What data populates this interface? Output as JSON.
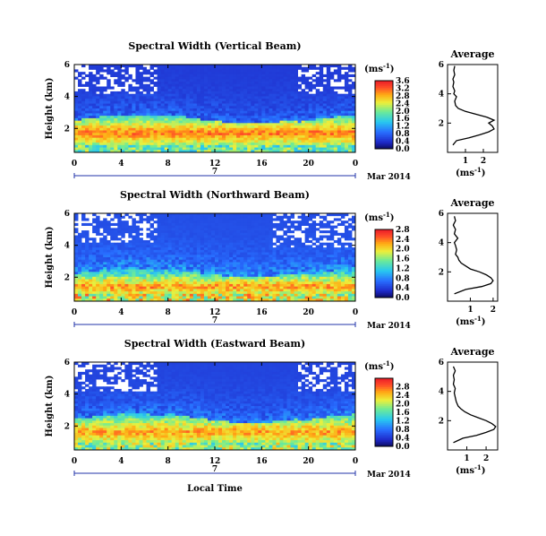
{
  "chart_data": [
    {
      "type": "heatmap",
      "title": "Spectral Width (Vertical Beam)",
      "xlabel": "",
      "ylabel": "Height (km)",
      "xlim": [
        0,
        24
      ],
      "ylim": [
        0.5,
        6
      ],
      "xticks": [
        "0",
        "4",
        "8",
        "12",
        "16",
        "20",
        "0"
      ],
      "yticks": [
        "2",
        "4",
        "6"
      ],
      "date_marker": "7",
      "date_label": "Mar 2014",
      "colorbar": {
        "unit": "(ms",
        "unit_sup": "-1",
        "unit_close": ")",
        "range": [
          0,
          3.6
        ],
        "tick_values": [
          0.0,
          0.4,
          0.8,
          1.2,
          1.6,
          2.0,
          2.4,
          2.8,
          3.2,
          3.6
        ],
        "ticks": [
          "0.0",
          "0.4",
          "0.8",
          "1.2",
          "1.6",
          "2.0",
          "2.4",
          "2.8",
          "3.2",
          "3.6"
        ]
      },
      "field": {
        "gap_height_km": 1.7,
        "peak_height_km": 1.7,
        "layer_top_km": 2.5,
        "layer_thickness_km": 1.2,
        "peak_value": 3.4,
        "upper_value": 0.5
      },
      "profile": {
        "title": "Average",
        "xlabel": "(ms",
        "xlabel_sup": "-1",
        "xlabel_close": ")",
        "xlim": [
          0,
          2.8
        ],
        "ylim": [
          0,
          6
        ],
        "xticks": [
          "1",
          "2"
        ],
        "yticks": [
          "2",
          "4",
          "6"
        ],
        "heights_km": [
          0.5,
          0.8,
          1.0,
          1.2,
          1.4,
          1.6,
          1.8,
          2.0,
          2.2,
          2.4,
          2.6,
          2.8,
          3.0,
          3.2,
          3.5,
          3.8,
          4.0,
          4.2,
          4.5,
          4.8,
          5.0,
          5.3,
          5.6,
          5.9
        ],
        "values": [
          0.3,
          0.5,
          1.2,
          1.8,
          2.3,
          2.6,
          2.5,
          2.3,
          2.6,
          2.2,
          1.6,
          1.0,
          0.6,
          0.45,
          0.4,
          0.5,
          0.35,
          0.4,
          0.3,
          0.35,
          0.3,
          0.4,
          0.35,
          0.4
        ]
      }
    },
    {
      "type": "heatmap",
      "title": "Spectral Width (Northward Beam)",
      "xlabel": "",
      "ylabel": "Height (km)",
      "xlim": [
        0,
        24
      ],
      "ylim": [
        0.5,
        6
      ],
      "xticks": [
        "0",
        "4",
        "8",
        "12",
        "16",
        "20",
        "0"
      ],
      "yticks": [
        "2",
        "4",
        "6"
      ],
      "date_marker": "7",
      "date_label": "Mar 2014",
      "colorbar": {
        "unit": "(ms",
        "unit_sup": "-1",
        "unit_close": ")",
        "range": [
          0,
          2.8
        ],
        "tick_values": [
          0.0,
          0.4,
          0.8,
          1.2,
          1.6,
          2.0,
          2.4,
          2.8
        ],
        "ticks": [
          "0.0",
          "0.4",
          "0.8",
          "1.2",
          "1.6",
          "2.0",
          "2.4",
          "2.8"
        ]
      },
      "field": {
        "gap_height_km": 1.4,
        "peak_height_km": 1.4,
        "layer_top_km": 2.2,
        "layer_thickness_km": 1.0,
        "peak_value": 2.6,
        "upper_value": 0.5
      },
      "profile": {
        "title": "Average",
        "xlabel": "(ms",
        "xlabel_sup": "-1",
        "xlabel_close": ")",
        "xlim": [
          0,
          2.2
        ],
        "ylim": [
          0,
          6
        ],
        "xticks": [
          "1",
          "2"
        ],
        "yticks": [
          "2",
          "4",
          "6"
        ],
        "heights_km": [
          0.5,
          0.8,
          1.0,
          1.2,
          1.4,
          1.6,
          1.8,
          2.0,
          2.2,
          2.4,
          2.6,
          2.8,
          3.0,
          3.2,
          3.5,
          3.8,
          4.0,
          4.3,
          4.6,
          4.9,
          5.2,
          5.5,
          5.8
        ],
        "values": [
          0.3,
          0.8,
          1.5,
          1.9,
          2.0,
          1.9,
          1.7,
          1.4,
          1.0,
          0.8,
          0.6,
          0.5,
          0.45,
          0.35,
          0.4,
          0.35,
          0.3,
          0.45,
          0.3,
          0.35,
          0.25,
          0.35,
          0.3
        ]
      }
    },
    {
      "type": "heatmap",
      "title": "Spectral Width (Eastward Beam)",
      "xlabel": "Local Time",
      "ylabel": "Height (km)",
      "xlim": [
        0,
        24
      ],
      "ylim": [
        0.5,
        6
      ],
      "xticks": [
        "0",
        "4",
        "8",
        "12",
        "16",
        "20",
        "0"
      ],
      "yticks": [
        "2",
        "4",
        "6"
      ],
      "date_marker": "7",
      "date_label": "Mar 2014",
      "colorbar": {
        "unit": "(ms",
        "unit_sup": "-1",
        "unit_close": ")",
        "range": [
          0,
          3.2
        ],
        "tick_values": [
          0.0,
          0.4,
          0.8,
          1.2,
          1.6,
          2.0,
          2.4,
          2.8
        ],
        "ticks": [
          "0.0",
          "0.4",
          "0.8",
          "1.2",
          "1.6",
          "2.0",
          "2.4",
          "2.8"
        ]
      },
      "field": {
        "gap_height_km": 1.7,
        "peak_height_km": 1.6,
        "layer_top_km": 2.4,
        "layer_thickness_km": 1.3,
        "peak_value": 2.9,
        "upper_value": 0.5
      },
      "profile": {
        "title": "Average",
        "xlabel": "(ms",
        "xlabel_sup": "-1",
        "xlabel_close": ")",
        "xlim": [
          0,
          2.6
        ],
        "ylim": [
          0,
          6
        ],
        "xticks": [
          "1",
          "2"
        ],
        "yticks": [
          "2",
          "4",
          "6"
        ],
        "heights_km": [
          0.5,
          0.8,
          1.0,
          1.2,
          1.4,
          1.6,
          1.8,
          2.0,
          2.2,
          2.4,
          2.6,
          2.8,
          3.0,
          3.3,
          3.6,
          3.9,
          4.2,
          4.5,
          4.8,
          5.1,
          5.4,
          5.7
        ],
        "values": [
          0.3,
          0.8,
          1.5,
          2.0,
          2.4,
          2.5,
          2.3,
          2.0,
          1.6,
          1.2,
          0.9,
          0.7,
          0.55,
          0.45,
          0.4,
          0.35,
          0.4,
          0.3,
          0.35,
          0.3,
          0.4,
          0.3
        ]
      }
    }
  ]
}
